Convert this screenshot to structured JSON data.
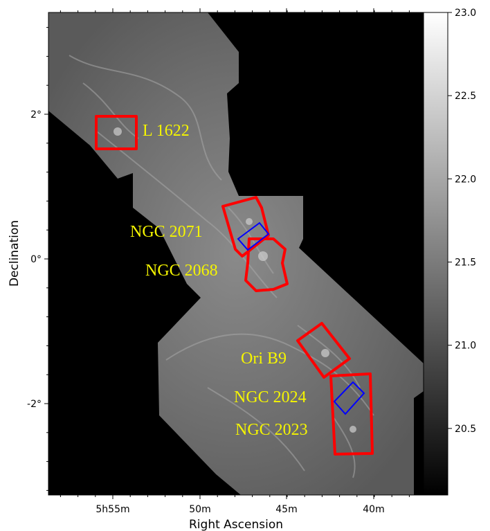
{
  "chart_data": {
    "type": "heatmap",
    "xlabel": "Right Ascension",
    "ylabel": "Declination",
    "x_ticks": [
      "5h55m",
      "50m",
      "45m",
      "40m"
    ],
    "y_ticks": [
      "2°",
      "0°",
      "-2°"
    ],
    "colorbar": {
      "colormap": "gray",
      "range": [
        20.1,
        23.0
      ],
      "ticks": [
        "20.5",
        "21.0",
        "21.5",
        "22.0",
        "22.5",
        "23.0"
      ]
    },
    "regions": [
      {
        "label": "L 1622",
        "color": "#ff0000"
      },
      {
        "label": "NGC 2071",
        "color": "#ff0000"
      },
      {
        "label": "NGC 2068",
        "color": "#ff0000"
      },
      {
        "label": "Ori B9",
        "color": "#ff0000"
      },
      {
        "label": "NGC 2024",
        "color": "#ff0000"
      },
      {
        "label": "NGC 2023",
        "color": "#ff0000"
      }
    ],
    "blue_boxes": 2,
    "label_color": "#ffff00"
  }
}
